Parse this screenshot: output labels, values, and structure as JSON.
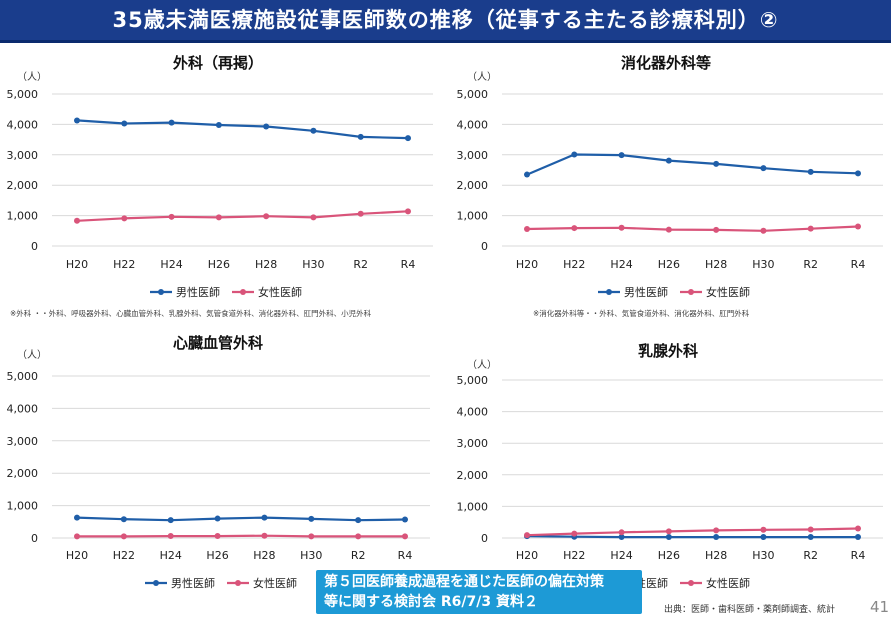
{
  "header": {
    "title": "35歳未満医療施設従事医師数の推移（従事する主たる診療科別）②"
  },
  "legend_labels": {
    "male": "男性医師",
    "female": "女性医師"
  },
  "colors": {
    "male": "#1f5ea8",
    "female": "#d9547a",
    "header_bg": "#1a3d8c",
    "badge_bg": "#1d9ad6"
  },
  "chart_data": [
    {
      "type": "line",
      "title": "外科（再掲）",
      "ylabel": "（人）",
      "categories": [
        "H20",
        "H22",
        "H24",
        "H26",
        "H28",
        "H30",
        "R2",
        "R4"
      ],
      "ylim": [
        0,
        5000
      ],
      "yticks": [
        0,
        1000,
        2000,
        3000,
        4000,
        5000
      ],
      "ytick_labels": [
        "0",
        "1,000",
        "2,000",
        "3,000",
        "4,000",
        "5,000"
      ],
      "series": [
        {
          "name": "男性医師",
          "values": [
            4130,
            4030,
            4060,
            3980,
            3930,
            3790,
            3590,
            3550
          ]
        },
        {
          "name": "女性医師",
          "values": [
            830,
            910,
            960,
            940,
            980,
            940,
            1060,
            1140
          ]
        }
      ],
      "note": "※外科 ・・外科、呼吸器外科、心臓血管外科、乳腺外科、気管食道外科、消化器外科、肛門外科、小児外科"
    },
    {
      "type": "line",
      "title": "消化器外科等",
      "ylabel": "（人）",
      "categories": [
        "H20",
        "H22",
        "H24",
        "H26",
        "H28",
        "H30",
        "R2",
        "R4"
      ],
      "ylim": [
        0,
        5000
      ],
      "yticks": [
        0,
        1000,
        2000,
        3000,
        4000,
        5000
      ],
      "ytick_labels": [
        "0",
        "1,000",
        "2,000",
        "3,000",
        "4,000",
        "5,000"
      ],
      "series": [
        {
          "name": "男性医師",
          "values": [
            2350,
            3010,
            2990,
            2810,
            2700,
            2560,
            2440,
            2390
          ]
        },
        {
          "name": "女性医師",
          "values": [
            560,
            590,
            600,
            540,
            530,
            500,
            570,
            640
          ]
        }
      ],
      "note": "※消化器外科等・・外科、気管食道外科、消化器外科、肛門外科"
    },
    {
      "type": "line",
      "title": "心臓血管外科",
      "ylabel": "（人）",
      "categories": [
        "H20",
        "H22",
        "H24",
        "H26",
        "H28",
        "H30",
        "R2",
        "R4"
      ],
      "ylim": [
        0,
        5000
      ],
      "yticks": [
        0,
        1000,
        2000,
        3000,
        4000,
        5000
      ],
      "ytick_labels": [
        "0",
        "1,000",
        "2,000",
        "3,000",
        "4,000",
        "5,000"
      ],
      "series": [
        {
          "name": "男性医師",
          "values": [
            630,
            580,
            550,
            600,
            630,
            590,
            550,
            570
          ]
        },
        {
          "name": "女性医師",
          "values": [
            50,
            50,
            60,
            60,
            70,
            50,
            50,
            50
          ]
        }
      ]
    },
    {
      "type": "line",
      "title": "乳腺外科",
      "ylabel": "（人）",
      "categories": [
        "H20",
        "H22",
        "H24",
        "H26",
        "H28",
        "H30",
        "R2",
        "R4"
      ],
      "ylim": [
        0,
        5000
      ],
      "yticks": [
        0,
        1000,
        2000,
        3000,
        4000,
        5000
      ],
      "ytick_labels": [
        "0",
        "1,000",
        "2,000",
        "3,000",
        "4,000",
        "5,000"
      ],
      "series": [
        {
          "name": "男性医師",
          "values": [
            60,
            40,
            30,
            30,
            30,
            30,
            30,
            30
          ]
        },
        {
          "name": "女性医師",
          "values": [
            90,
            140,
            180,
            210,
            240,
            260,
            270,
            300
          ]
        }
      ]
    }
  ],
  "badge": {
    "line1": "第５回医師養成過程を通じた医師の偏在対策",
    "line2": "等に関する検討会 R6/7/3 資料２"
  },
  "source": "出典：医師・歯科医師・薬剤師調査、統計",
  "page_number": "41"
}
